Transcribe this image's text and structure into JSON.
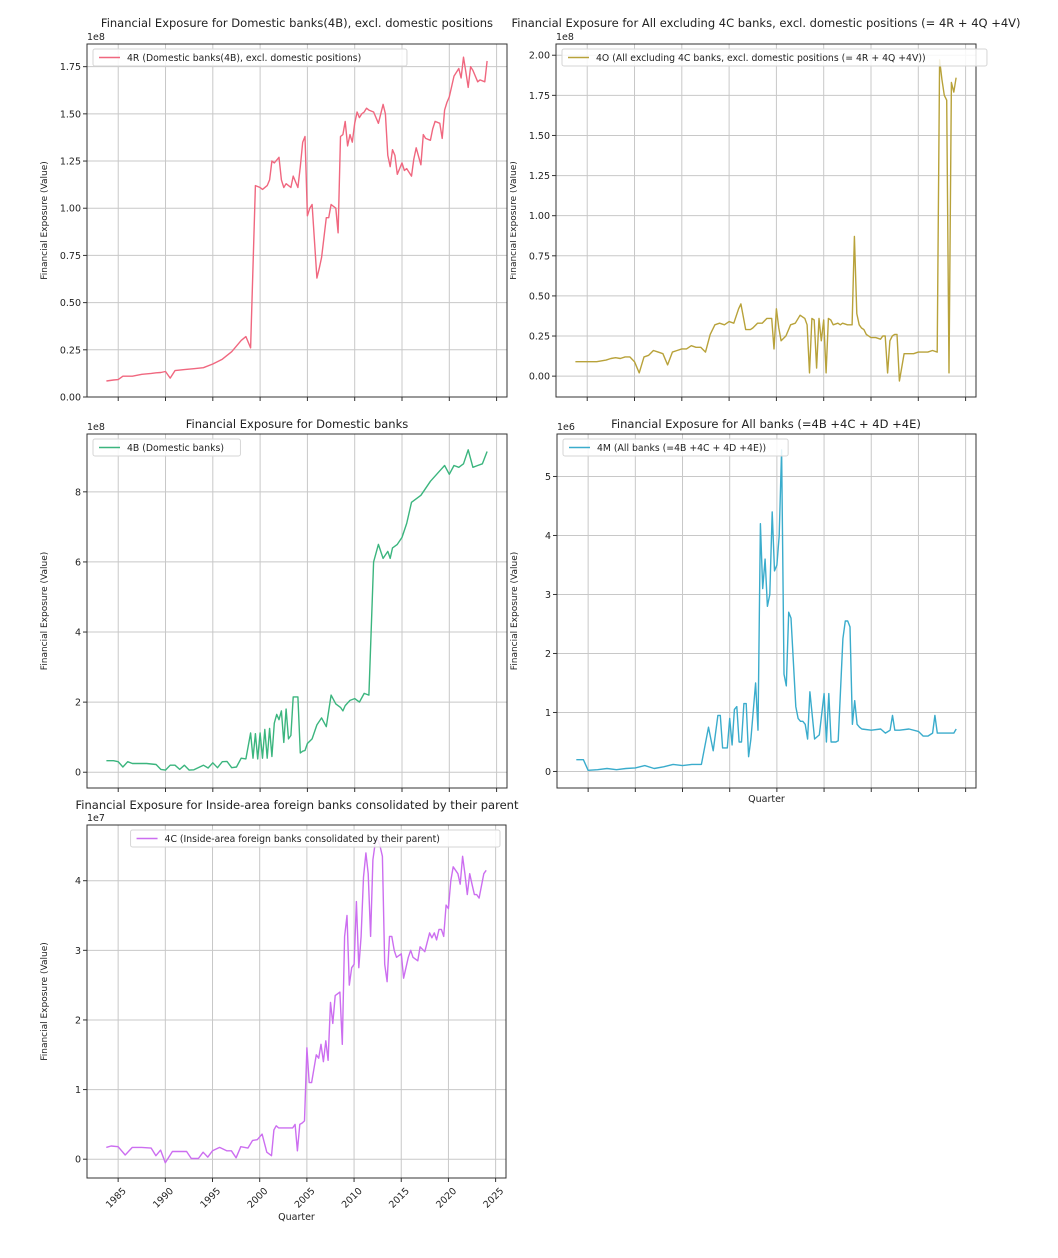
{
  "figure": {
    "x_axis_label": "Quarter",
    "y_axis_label": "Financial Exposure (Value)",
    "x_tick_labels": [
      "1985",
      "1990",
      "1995",
      "2000",
      "2005",
      "2010",
      "2015",
      "2020",
      "2025"
    ]
  },
  "chart_data": [
    {
      "id": "4R",
      "type": "line",
      "title": "Financial Exposure for Domestic banks(4B), excl. domestic positions",
      "legend": "4R (Domestic banks(4B), excl. domestic positions)",
      "legend_position": "upper left",
      "color": "#f0677f",
      "ylabel": "Financial Exposure (Value)",
      "xlabel": "",
      "scale_label": "1e8",
      "scale": 100000000,
      "yticks": [
        0.0,
        0.25,
        0.5,
        0.75,
        1.0,
        1.25,
        1.5,
        1.75
      ],
      "ytick_labels": [
        "0.00",
        "0.25",
        "0.50",
        "0.75",
        "1.00",
        "1.25",
        "1.50",
        "1.75"
      ],
      "ylim": [
        0.0,
        1.87
      ],
      "grid": true,
      "x": [
        1983.75,
        1984.5,
        1985.0,
        1985.5,
        1986.5,
        1987.5,
        1988.5,
        1989.0,
        1989.5,
        1990.0,
        1990.5,
        1991.0,
        1992.0,
        1993.0,
        1994.0,
        1995.0,
        1996.0,
        1997.0,
        1998.0,
        1998.5,
        1999.0,
        1999.5,
        2000.0,
        2000.25,
        2000.75,
        2001.0,
        2001.25,
        2001.5,
        2002.0,
        2002.25,
        2002.5,
        2002.75,
        2003.0,
        2003.25,
        2003.5,
        2004.0,
        2004.25,
        2004.5,
        2004.75,
        2005.0,
        2005.25,
        2005.5,
        2006.0,
        2006.25,
        2006.5,
        2007.0,
        2007.25,
        2007.5,
        2008.0,
        2008.25,
        2008.5,
        2008.75,
        2009.0,
        2009.25,
        2009.5,
        2009.75,
        2010.0,
        2010.25,
        2010.5,
        2010.75,
        2011.0,
        2011.25,
        2011.5,
        2012.0,
        2012.5,
        2013.0,
        2013.25,
        2013.5,
        2013.75,
        2014.0,
        2014.25,
        2014.5,
        2015.0,
        2015.25,
        2015.5,
        2016.0,
        2016.25,
        2016.5,
        2017.0,
        2017.25,
        2017.5,
        2018.0,
        2018.25,
        2018.5,
        2019.0,
        2019.25,
        2019.5,
        2019.75,
        2020.0,
        2020.5,
        2021.0,
        2021.25,
        2021.5,
        2021.75,
        2022.0,
        2022.25,
        2022.5,
        2023.0,
        2023.25,
        2023.75,
        2024.0
      ],
      "values": [
        0.085,
        0.09,
        0.092,
        0.11,
        0.11,
        0.12,
        0.125,
        0.128,
        0.13,
        0.135,
        0.1,
        0.14,
        0.145,
        0.15,
        0.155,
        0.175,
        0.2,
        0.24,
        0.3,
        0.32,
        0.26,
        1.12,
        1.11,
        1.1,
        1.12,
        1.15,
        1.25,
        1.24,
        1.27,
        1.15,
        1.11,
        1.13,
        1.12,
        1.11,
        1.17,
        1.11,
        1.22,
        1.35,
        1.38,
        0.96,
        1.0,
        1.02,
        0.63,
        0.68,
        0.74,
        0.95,
        0.95,
        1.02,
        1.0,
        0.87,
        1.38,
        1.39,
        1.46,
        1.33,
        1.39,
        1.35,
        1.45,
        1.51,
        1.48,
        1.5,
        1.51,
        1.53,
        1.52,
        1.51,
        1.45,
        1.55,
        1.5,
        1.28,
        1.22,
        1.31,
        1.28,
        1.18,
        1.24,
        1.2,
        1.21,
        1.17,
        1.26,
        1.32,
        1.23,
        1.39,
        1.37,
        1.36,
        1.42,
        1.46,
        1.45,
        1.37,
        1.52,
        1.56,
        1.59,
        1.7,
        1.74,
        1.69,
        1.8,
        1.72,
        1.64,
        1.75,
        1.73,
        1.67,
        1.68,
        1.67,
        1.78
      ]
    },
    {
      "id": "4O",
      "type": "line",
      "title": "Financial Exposure for All excluding 4C banks, excl. domestic positions (= 4R + 4Q +4V)",
      "legend": "4O (All excluding 4C banks, excl. domestic positions (= 4R + 4Q +4V))",
      "legend_position": "upper left",
      "color": "#b8a23a",
      "ylabel": "Financial Exposure (Value)",
      "xlabel": "",
      "scale_label": "1e8",
      "scale": 100000000,
      "yticks": [
        0.0,
        0.25,
        0.5,
        0.75,
        1.0,
        1.25,
        1.5,
        1.75,
        2.0
      ],
      "ytick_labels": [
        "0.00",
        "0.25",
        "0.50",
        "0.75",
        "1.00",
        "1.25",
        "1.50",
        "1.75",
        "2.00"
      ],
      "ylim": [
        -0.13,
        2.07
      ],
      "grid": true,
      "x": [
        1983.75,
        1984.5,
        1985.0,
        1986.0,
        1987.0,
        1987.5,
        1988.0,
        1988.5,
        1989.0,
        1989.5,
        1990.0,
        1990.5,
        1991.0,
        1991.5,
        1992.0,
        1992.5,
        1993.0,
        1993.5,
        1994.0,
        1994.5,
        1995.0,
        1995.5,
        1996.0,
        1996.5,
        1997.0,
        1997.5,
        1998.0,
        1998.5,
        1999.0,
        1999.5,
        2000.0,
        2000.5,
        2001.0,
        2001.25,
        2001.75,
        2002.25,
        2002.5,
        2003.0,
        2003.5,
        2004.0,
        2004.25,
        2004.5,
        2004.75,
        2005.0,
        2005.25,
        2005.5,
        2006.0,
        2006.5,
        2007.0,
        2007.5,
        2008.0,
        2008.25,
        2008.5,
        2008.75,
        2009.0,
        2009.25,
        2009.5,
        2009.75,
        2010.0,
        2010.25,
        2010.5,
        2010.75,
        2011.0,
        2011.5,
        2011.75,
        2012.0,
        2012.5,
        2013.0,
        2013.25,
        2013.5,
        2013.75,
        2014.0,
        2014.25,
        2014.5,
        2015.0,
        2015.5,
        2016.0,
        2016.25,
        2016.5,
        2016.75,
        2017.0,
        2017.25,
        2017.5,
        2017.75,
        2018.0,
        2018.5,
        2019.0,
        2019.5,
        2020.0,
        2020.5,
        2021.0,
        2021.5,
        2022.0,
        2022.25,
        2022.5,
        2022.75,
        2023.0,
        2023.25,
        2023.5,
        2023.75,
        2024.0
      ],
      "values": [
        0.09,
        0.09,
        0.09,
        0.09,
        0.1,
        0.11,
        0.115,
        0.11,
        0.12,
        0.12,
        0.09,
        0.02,
        0.12,
        0.13,
        0.16,
        0.15,
        0.14,
        0.07,
        0.15,
        0.16,
        0.17,
        0.17,
        0.19,
        0.18,
        0.18,
        0.15,
        0.26,
        0.32,
        0.33,
        0.32,
        0.34,
        0.33,
        0.42,
        0.45,
        0.29,
        0.29,
        0.3,
        0.33,
        0.33,
        0.36,
        0.36,
        0.36,
        0.17,
        0.42,
        0.3,
        0.22,
        0.25,
        0.32,
        0.33,
        0.38,
        0.36,
        0.32,
        0.02,
        0.36,
        0.35,
        0.05,
        0.36,
        0.22,
        0.35,
        0.02,
        0.36,
        0.35,
        0.32,
        0.33,
        0.32,
        0.33,
        0.32,
        0.32,
        0.87,
        0.39,
        0.32,
        0.3,
        0.29,
        0.26,
        0.24,
        0.24,
        0.23,
        0.25,
        0.25,
        0.02,
        0.22,
        0.25,
        0.26,
        0.26,
        -0.03,
        0.14,
        0.14,
        0.14,
        0.15,
        0.15,
        0.15,
        0.16,
        0.15,
        1.97,
        1.85,
        1.75,
        1.72,
        0.02,
        1.83,
        1.77,
        1.86
      ]
    },
    {
      "id": "4B",
      "type": "line",
      "title": "Financial Exposure for Domestic banks",
      "legend": "4B (Domestic banks)",
      "legend_position": "upper left",
      "color": "#3bb57e",
      "ylabel": "Financial Exposure (Value)",
      "xlabel": "",
      "scale_label": "1e8",
      "scale": 100000000,
      "yticks": [
        0,
        2,
        4,
        6,
        8
      ],
      "ytick_labels": [
        "0",
        "2",
        "4",
        "6",
        "8"
      ],
      "ylim": [
        -0.45,
        9.65
      ],
      "grid": true,
      "x": [
        1983.75,
        1984.5,
        1985.0,
        1985.5,
        1986.0,
        1986.5,
        1987.0,
        1988.0,
        1989.0,
        1989.5,
        1990.0,
        1990.5,
        1991.0,
        1991.5,
        1992.0,
        1992.5,
        1993.0,
        1994.0,
        1994.5,
        1995.0,
        1995.5,
        1996.0,
        1996.5,
        1997.0,
        1997.5,
        1998.0,
        1998.5,
        1999.0,
        1999.25,
        1999.5,
        1999.75,
        2000.0,
        2000.25,
        2000.5,
        2000.75,
        2001.0,
        2001.25,
        2001.5,
        2001.75,
        2002.0,
        2002.25,
        2002.5,
        2002.75,
        2003.0,
        2003.25,
        2003.5,
        2004.0,
        2004.25,
        2004.5,
        2004.75,
        2005.0,
        2005.5,
        2006.0,
        2006.5,
        2007.0,
        2007.5,
        2008.0,
        2008.5,
        2008.75,
        2009.0,
        2009.5,
        2010.0,
        2010.5,
        2011.0,
        2011.5,
        2012.0,
        2012.5,
        2013.0,
        2013.5,
        2013.75,
        2014.0,
        2014.5,
        2015.0,
        2015.5,
        2016.0,
        2017.0,
        2018.0,
        2019.0,
        2019.5,
        2020.0,
        2020.5,
        2021.0,
        2021.5,
        2022.0,
        2022.5,
        2023.0,
        2023.5,
        2024.0
      ],
      "values": [
        0.33,
        0.33,
        0.3,
        0.15,
        0.3,
        0.25,
        0.25,
        0.25,
        0.22,
        0.08,
        0.06,
        0.2,
        0.2,
        0.08,
        0.2,
        0.06,
        0.07,
        0.2,
        0.12,
        0.27,
        0.13,
        0.3,
        0.31,
        0.13,
        0.15,
        0.4,
        0.38,
        1.12,
        0.4,
        1.1,
        0.38,
        1.12,
        0.4,
        1.22,
        0.4,
        1.25,
        0.45,
        1.4,
        1.65,
        1.5,
        1.75,
        0.85,
        1.8,
        0.95,
        1.05,
        2.15,
        2.15,
        0.55,
        0.6,
        0.62,
        0.82,
        0.95,
        1.35,
        1.55,
        1.3,
        2.2,
        1.95,
        1.85,
        1.75,
        1.9,
        2.05,
        2.1,
        2.0,
        2.25,
        2.2,
        6.0,
        6.5,
        6.1,
        6.3,
        6.1,
        6.4,
        6.5,
        6.7,
        7.1,
        7.7,
        7.9,
        8.3,
        8.6,
        8.75,
        8.5,
        8.75,
        8.7,
        8.8,
        9.2,
        8.7,
        8.75,
        8.8,
        9.15
      ]
    },
    {
      "id": "4M",
      "type": "line",
      "title": "Financial Exposure for All banks (=4B +4C + 4D +4E)",
      "legend": "4M (All banks (=4B +4C + 4D +4E))",
      "legend_position": "upper left",
      "color": "#3aaccc",
      "ylabel": "Financial Exposure (Value)",
      "xlabel": "Quarter",
      "scale_label": "1e6",
      "scale": 1000000,
      "yticks": [
        0,
        1,
        2,
        3,
        4,
        5
      ],
      "ytick_labels": [
        "0",
        "1",
        "2",
        "3",
        "4",
        "5"
      ],
      "ylim": [
        -0.28,
        5.72
      ],
      "grid": true,
      "x": [
        1983.75,
        1984.5,
        1985.0,
        1986.0,
        1987.0,
        1988.0,
        1989.0,
        1990.0,
        1991.0,
        1992.0,
        1993.0,
        1994.0,
        1995.0,
        1996.0,
        1997.0,
        1997.75,
        1998.25,
        1998.75,
        1999.0,
        1999.25,
        1999.75,
        2000.0,
        2000.25,
        2000.5,
        2000.75,
        2001.0,
        2001.25,
        2001.5,
        2001.75,
        2002.0,
        2002.25,
        2002.75,
        2003.0,
        2003.25,
        2003.5,
        2003.75,
        2004.0,
        2004.25,
        2004.5,
        2004.75,
        2005.0,
        2005.25,
        2005.5,
        2005.75,
        2006.0,
        2006.25,
        2006.5,
        2007.0,
        2007.25,
        2007.5,
        2007.75,
        2008.0,
        2008.25,
        2008.5,
        2009.0,
        2009.5,
        2010.0,
        2010.25,
        2010.5,
        2010.75,
        2011.0,
        2011.25,
        2011.5,
        2012.0,
        2012.25,
        2012.5,
        2012.75,
        2013.0,
        2013.25,
        2013.5,
        2013.75,
        2014.0,
        2015.0,
        2016.0,
        2016.5,
        2017.0,
        2017.25,
        2017.5,
        2018.0,
        2019.0,
        2020.0,
        2020.5,
        2021.0,
        2021.5,
        2021.75,
        2022.0,
        2022.5,
        2023.0,
        2023.5,
        2023.75,
        2024.0
      ],
      "values": [
        0.2,
        0.2,
        0.02,
        0.03,
        0.05,
        0.03,
        0.05,
        0.06,
        0.1,
        0.05,
        0.08,
        0.12,
        0.1,
        0.12,
        0.12,
        0.75,
        0.35,
        0.95,
        0.95,
        0.4,
        0.4,
        0.9,
        0.45,
        1.05,
        1.1,
        0.5,
        0.5,
        1.15,
        1.15,
        0.25,
        0.55,
        1.5,
        0.7,
        4.2,
        3.1,
        3.6,
        2.8,
        3.0,
        4.4,
        3.4,
        3.5,
        4.0,
        5.45,
        1.65,
        1.45,
        2.7,
        2.6,
        1.1,
        0.9,
        0.85,
        0.85,
        0.8,
        0.55,
        1.35,
        0.55,
        0.62,
        1.32,
        0.5,
        1.32,
        0.5,
        0.5,
        0.5,
        0.52,
        2.25,
        2.55,
        2.55,
        2.45,
        0.8,
        1.2,
        0.8,
        0.75,
        0.72,
        0.7,
        0.72,
        0.65,
        0.7,
        0.95,
        0.7,
        0.7,
        0.72,
        0.68,
        0.6,
        0.6,
        0.65,
        0.95,
        0.65,
        0.65,
        0.65,
        0.65,
        0.65,
        0.72
      ]
    },
    {
      "id": "4C",
      "type": "line",
      "title": "Financial Exposure for Inside-area foreign banks consolidated by their parent",
      "legend": "4C (Inside-area foreign banks consolidated by their parent)",
      "legend_position": "upper right",
      "color": "#cc6ef0",
      "ylabel": "Financial Exposure (Value)",
      "xlabel": "Quarter",
      "scale_label": "1e7",
      "scale": 10000000,
      "yticks": [
        0,
        1,
        2,
        3,
        4
      ],
      "ytick_labels": [
        "0",
        "1",
        "2",
        "3",
        "4"
      ],
      "xticks": [
        1985,
        1990,
        1995,
        2000,
        2005,
        2010,
        2015,
        2020,
        2025
      ],
      "xtick_labels": [
        "1985",
        "1990",
        "1995",
        "2000",
        "2005",
        "2010",
        "2015",
        "2020",
        "2025"
      ],
      "xlim": [
        1981.7,
        2026.1
      ],
      "ylim": [
        -0.27,
        4.8
      ],
      "grid": true,
      "x": [
        1983.75,
        1984.25,
        1985.0,
        1985.75,
        1986.5,
        1987.5,
        1988.5,
        1989.0,
        1989.5,
        1990.0,
        1990.75,
        1991.5,
        1992.25,
        1992.75,
        1993.5,
        1994.0,
        1994.5,
        1995.0,
        1995.75,
        1996.5,
        1997.0,
        1997.5,
        1998.0,
        1998.75,
        1999.25,
        1999.75,
        2000.25,
        2000.75,
        2001.25,
        2001.5,
        2001.75,
        2002.0,
        2002.5,
        2003.0,
        2003.5,
        2003.75,
        2004.0,
        2004.25,
        2004.5,
        2004.75,
        2005.0,
        2005.25,
        2005.5,
        2006.0,
        2006.25,
        2006.5,
        2006.75,
        2007.0,
        2007.25,
        2007.5,
        2007.75,
        2008.0,
        2008.5,
        2008.75,
        2009.0,
        2009.25,
        2009.5,
        2009.75,
        2010.0,
        2010.25,
        2010.5,
        2010.75,
        2011.0,
        2011.25,
        2011.5,
        2011.75,
        2012.0,
        2012.25,
        2012.5,
        2012.75,
        2013.0,
        2013.25,
        2013.5,
        2013.75,
        2014.0,
        2014.25,
        2014.5,
        2015.0,
        2015.25,
        2015.75,
        2016.0,
        2016.25,
        2016.75,
        2017.0,
        2017.5,
        2018.0,
        2018.25,
        2018.5,
        2018.75,
        2019.0,
        2019.25,
        2019.5,
        2019.75,
        2020.0,
        2020.25,
        2020.5,
        2021.0,
        2021.25,
        2021.5,
        2021.75,
        2022.0,
        2022.25,
        2022.5,
        2022.75,
        2023.0,
        2023.25,
        2023.75,
        2024.0
      ],
      "values": [
        0.17,
        0.19,
        0.18,
        0.06,
        0.17,
        0.17,
        0.16,
        0.05,
        0.13,
        -0.05,
        0.11,
        0.11,
        0.11,
        0.01,
        0.01,
        0.1,
        0.03,
        0.12,
        0.17,
        0.12,
        0.12,
        0.02,
        0.18,
        0.16,
        0.27,
        0.28,
        0.36,
        0.1,
        0.05,
        0.42,
        0.48,
        0.45,
        0.45,
        0.45,
        0.45,
        0.5,
        0.12,
        0.5,
        0.52,
        0.55,
        1.6,
        1.1,
        1.1,
        1.5,
        1.45,
        1.65,
        1.4,
        1.7,
        1.42,
        2.25,
        1.95,
        2.35,
        2.4,
        1.65,
        3.2,
        3.5,
        2.5,
        2.75,
        2.8,
        3.7,
        2.75,
        3.2,
        4.05,
        4.4,
        4.1,
        3.2,
        4.3,
        4.55,
        4.6,
        4.5,
        4.35,
        2.8,
        2.55,
        3.2,
        3.2,
        3.0,
        2.9,
        2.95,
        2.6,
        2.9,
        3.0,
        2.9,
        2.85,
        3.05,
        2.98,
        3.25,
        3.18,
        3.25,
        3.15,
        3.3,
        3.3,
        3.2,
        3.65,
        3.6,
        4.0,
        4.2,
        4.1,
        3.95,
        4.35,
        4.1,
        3.8,
        4.1,
        3.95,
        3.8,
        3.8,
        3.75,
        4.1,
        4.15
      ]
    }
  ]
}
